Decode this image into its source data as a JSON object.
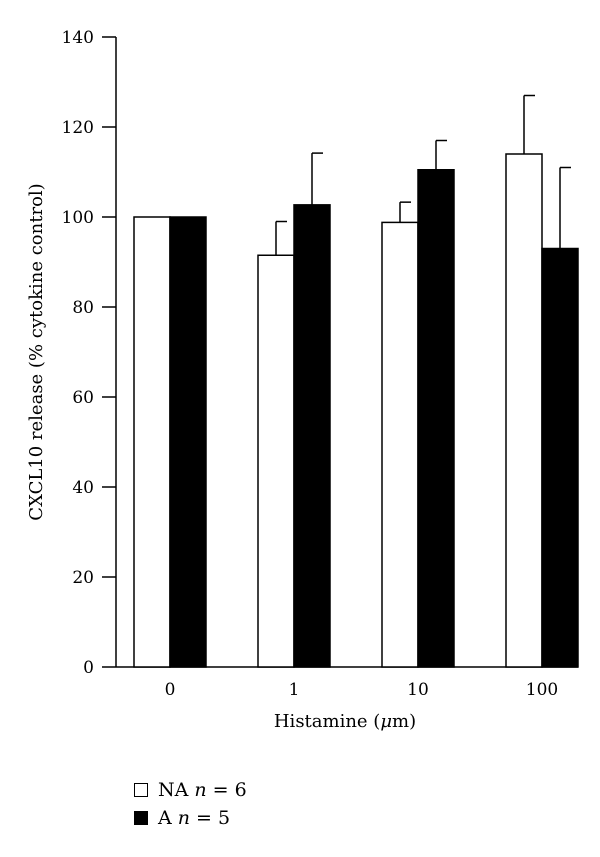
{
  "chart_data": {
    "type": "bar",
    "xlabel_parts": [
      "Histamine (",
      "μ",
      "m)"
    ],
    "ylabel": "CXCL10 release (% cytokine control)",
    "categories": [
      "0",
      "1",
      "10",
      "100"
    ],
    "ylim": [
      0,
      140
    ],
    "yticks": [
      "0",
      "20",
      "40",
      "60",
      "80",
      "100",
      "120",
      "140"
    ],
    "grid": false,
    "legend_position": "bottom-left",
    "series": [
      {
        "label_main": "NA",
        "n_symbol": "n",
        "n_rest": "= 6",
        "fill": "#ffffff",
        "values": [
          100,
          91.5,
          98.8,
          114
        ],
        "errors": [
          0,
          7.5,
          4.5,
          13
        ]
      },
      {
        "label_main": "A",
        "n_symbol": "n",
        "n_rest": "= 5",
        "fill": "#000000",
        "values": [
          100,
          102.7,
          110.5,
          93
        ],
        "errors": [
          0,
          11.5,
          6.5,
          18
        ]
      }
    ]
  }
}
